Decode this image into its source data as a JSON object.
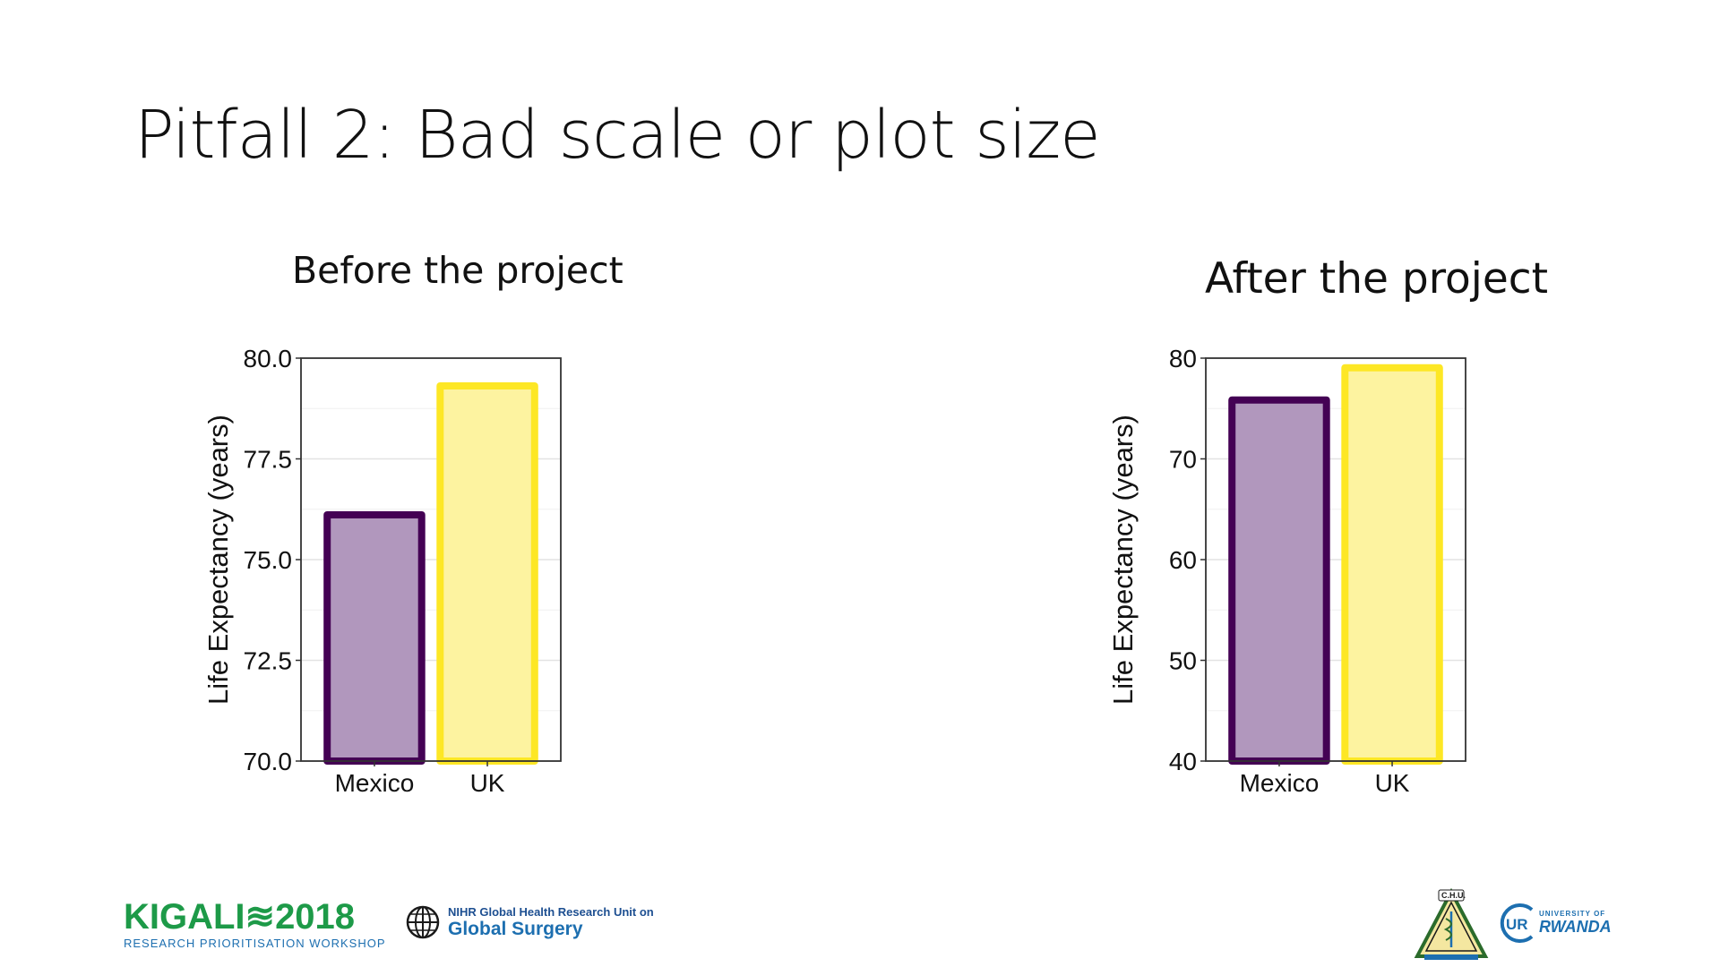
{
  "slide": {
    "title": "Pitfall 2: Bad scale or plot size"
  },
  "chart_data": [
    {
      "type": "bar",
      "title": "Before the project",
      "ylabel": "Life Expectancy (years)",
      "categories": [
        "Mexico",
        "UK"
      ],
      "values": [
        76.2,
        79.4
      ],
      "ylim": [
        70.0,
        80.0
      ],
      "yticks": [
        "70.0",
        "72.5",
        "75.0",
        "77.5",
        "80.0"
      ],
      "ytick_values": [
        70.0,
        72.5,
        75.0,
        77.5,
        80.0
      ],
      "grid": true,
      "fill_colors": [
        "#b197bd",
        "#fdf3a0"
      ],
      "outline_colors": [
        "#440154",
        "#fde725"
      ]
    },
    {
      "type": "bar",
      "title": "After the project",
      "ylabel": "Life Expectancy (years)",
      "categories": [
        "Mexico",
        "UK"
      ],
      "values": [
        76.2,
        79.4
      ],
      "ylim": [
        40,
        80
      ],
      "yticks": [
        "40",
        "50",
        "60",
        "70",
        "80"
      ],
      "ytick_values": [
        40,
        50,
        60,
        70,
        80
      ],
      "grid": true,
      "fill_colors": [
        "#b197bd",
        "#fdf3a0"
      ],
      "outline_colors": [
        "#440154",
        "#fde725"
      ]
    }
  ],
  "footer": {
    "kigali_name": "KIGALI≋2018",
    "kigali_sub": "RESEARCH PRIORITISATION WORKSHOP",
    "nihr_line1": "NIHR Global Health Research Unit on",
    "nihr_line2": "Global Surgery",
    "chu_text": "C.H.U.",
    "ur_small": "UNIVERSITY OF",
    "ur_big": "RWANDA"
  }
}
